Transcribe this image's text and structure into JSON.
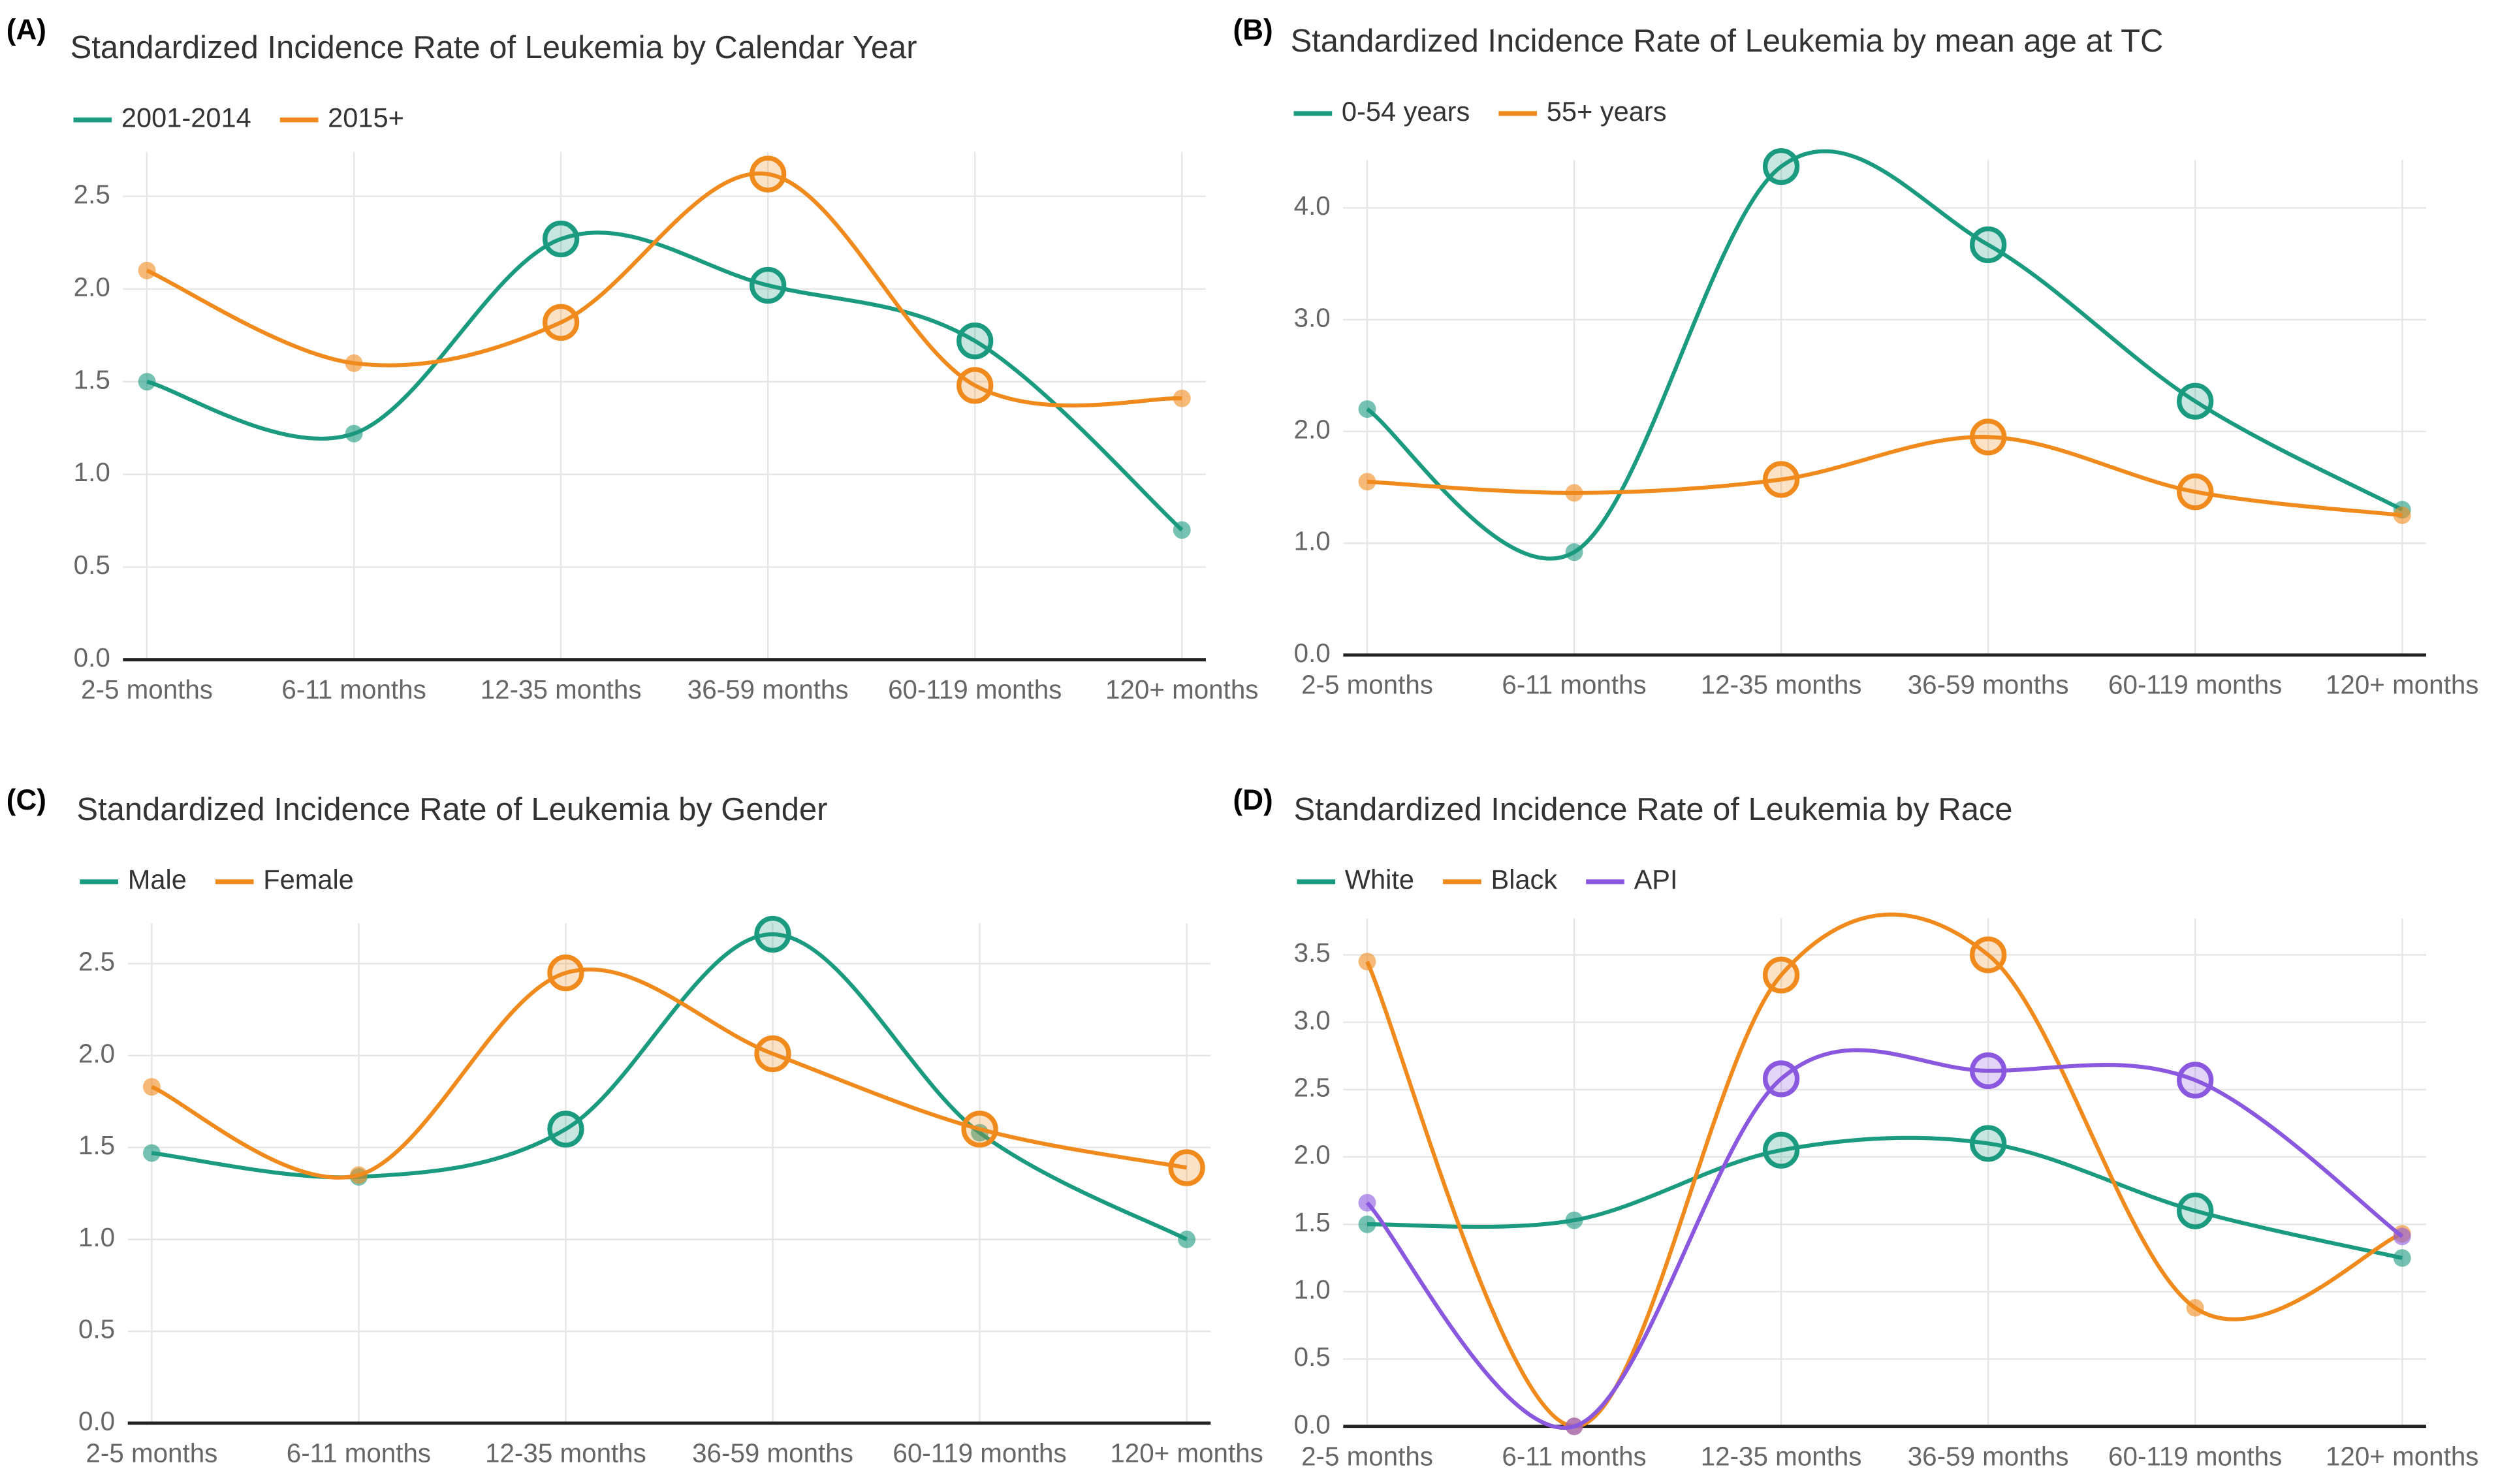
{
  "chart_data": [
    {
      "type": "line",
      "panel_label": "(A)",
      "title": "Standardized Incidence Rate of Leukemia by Calendar Year",
      "categories": [
        "2-5 months",
        "6-11 months",
        "12-35 months",
        "36-59 months",
        "60-119 months",
        "120+ months"
      ],
      "series": [
        {
          "name": "2001-2014",
          "color": "#1a9a7f",
          "values": [
            1.5,
            1.22,
            2.27,
            2.02,
            1.72,
            0.7
          ],
          "highlighted": [
            false,
            false,
            true,
            true,
            true,
            false
          ]
        },
        {
          "name": "2015+",
          "color": "#f08a1c",
          "values": [
            2.1,
            1.6,
            1.82,
            2.62,
            1.48,
            1.41
          ],
          "highlighted": [
            false,
            false,
            true,
            true,
            true,
            false
          ]
        }
      ],
      "ylim": [
        0,
        2.74
      ],
      "yticks": [
        {
          "value": 0,
          "label": "0.0"
        },
        0.5,
        {
          "value": 1,
          "label": "1.0"
        },
        1.5,
        {
          "value": 2,
          "label": "2.0"
        },
        2.5
      ],
      "grid": true
    },
    {
      "type": "line",
      "panel_label": "(B)",
      "title": "Standardized Incidence Rate of Leukemia by mean age at TC",
      "categories": [
        "2-5 months",
        "6-11 months",
        "12-35 months",
        "36-59 months",
        "60-119 months",
        "120+ months"
      ],
      "series": [
        {
          "name": "0-54 years",
          "color": "#1a9a7f",
          "values": [
            2.2,
            0.92,
            4.37,
            3.67,
            2.27,
            1.3
          ],
          "highlighted": [
            false,
            false,
            true,
            true,
            true,
            false
          ]
        },
        {
          "name": "55+ years",
          "color": "#f08a1c",
          "values": [
            1.55,
            1.45,
            1.57,
            1.95,
            1.46,
            1.25
          ],
          "highlighted": [
            false,
            false,
            true,
            true,
            true,
            false
          ]
        }
      ],
      "ylim": [
        0,
        4.43
      ],
      "yticks": [
        {
          "value": 0,
          "label": "0.0"
        },
        {
          "value": 1,
          "label": "1.0"
        },
        {
          "value": 2,
          "label": "2.0"
        },
        {
          "value": 3,
          "label": "3.0"
        },
        {
          "value": 4,
          "label": "4.0"
        }
      ],
      "grid": true
    },
    {
      "type": "line",
      "panel_label": "(C)",
      "title": "Standardized Incidence Rate of Leukemia by Gender",
      "categories": [
        "2-5 months",
        "6-11 months",
        "12-35 months",
        "36-59 months",
        "60-119 months",
        "120+ months"
      ],
      "series": [
        {
          "name": "Male",
          "color": "#1a9a7f",
          "values": [
            1.47,
            1.34,
            1.6,
            2.66,
            1.58,
            1.0
          ],
          "highlighted": [
            false,
            false,
            true,
            true,
            false,
            false
          ]
        },
        {
          "name": "Female",
          "color": "#f08a1c",
          "values": [
            1.83,
            1.35,
            2.45,
            2.01,
            1.6,
            1.39
          ],
          "highlighted": [
            false,
            false,
            true,
            true,
            true,
            true
          ]
        }
      ],
      "ylim": [
        0,
        2.72
      ],
      "yticks": [
        {
          "value": 0,
          "label": "0.0"
        },
        0.5,
        {
          "value": 1,
          "label": "1.0"
        },
        1.5,
        {
          "value": 2,
          "label": "2.0"
        },
        2.5
      ],
      "grid": true
    },
    {
      "type": "line",
      "panel_label": "(D)",
      "title": "Standardized Incidence Rate of Leukemia by Race",
      "categories": [
        "2-5 months",
        "6-11 months",
        "12-35 months",
        "36-59 months",
        "60-119 months",
        "120+ months"
      ],
      "series": [
        {
          "name": "White",
          "color": "#1a9a7f",
          "values": [
            1.5,
            1.53,
            2.05,
            2.1,
            1.6,
            1.25
          ],
          "highlighted": [
            false,
            false,
            true,
            true,
            true,
            false
          ]
        },
        {
          "name": "Black",
          "color": "#f08a1c",
          "values": [
            3.45,
            0,
            3.35,
            3.5,
            0.88,
            1.43
          ],
          "highlighted": [
            false,
            false,
            true,
            true,
            false,
            false
          ]
        },
        {
          "name": "API",
          "color": "#8a57df",
          "values": [
            1.66,
            0,
            2.58,
            2.64,
            2.57,
            1.41
          ],
          "highlighted": [
            false,
            false,
            true,
            true,
            true,
            false
          ]
        }
      ],
      "ylim": [
        0,
        3.77
      ],
      "yticks": [
        {
          "value": 0,
          "label": "0.0"
        },
        0.5,
        {
          "value": 1,
          "label": "1.0"
        },
        1.5,
        {
          "value": 2,
          "label": "2.0"
        },
        2.5,
        {
          "value": 3,
          "label": "3.0"
        },
        3.5
      ],
      "grid": true
    }
  ]
}
